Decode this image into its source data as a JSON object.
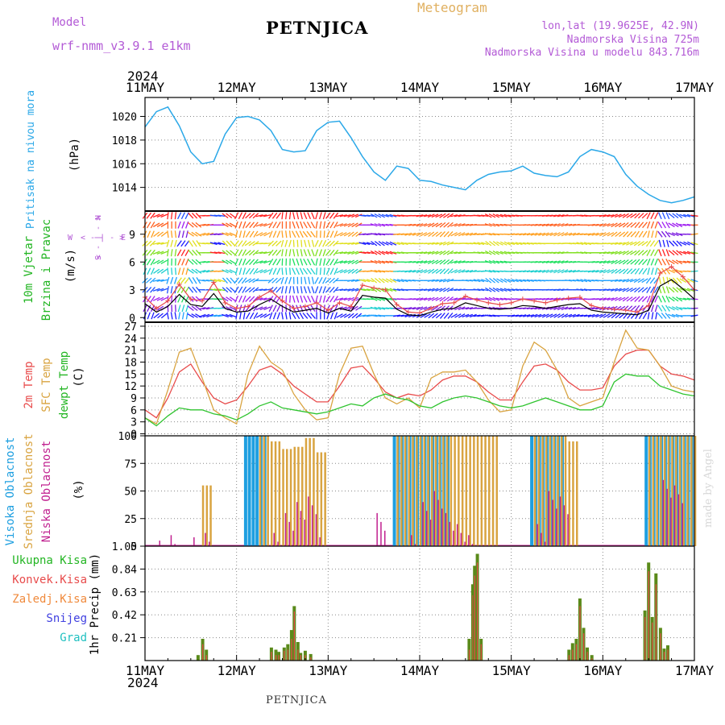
{
  "header": {
    "model_label": "Model",
    "model_name": "wrf-nmm_v3.9.1 e1km",
    "station": "PETNJICA",
    "product": "Meteogram",
    "lonlat": "lon,lat (19.9625E, 42.9N)",
    "elevation": "Nadmorska Visina 725m",
    "model_elevation": "Nadmorska Visina u modelu 843.716m",
    "year": "2024",
    "credit": "made by Angel",
    "footer_station": "PETNJICA"
  },
  "colors": {
    "pressure": "#2ba8e8",
    "wind_speed": "#000000",
    "gust": "#e84b4b",
    "temp2m": "#e84b4b",
    "sfc_temp": "#d9a441",
    "dewpt": "#2fc42f",
    "cloud_high": "#1e9fe0",
    "cloud_mid": "#d9a441",
    "cloud_low": "#c0208f",
    "precip_total": "#5a8a1a",
    "precip_conv": "#e84b4b",
    "label_model": "#b35ad6",
    "label_meteogram": "#e0b060"
  },
  "legend_dir": {
    "n": "N",
    "w": "W",
    "e": "E",
    "s": "S",
    "arrows": "< - | - >"
  },
  "chart_data": [
    {
      "type": "line",
      "panel": "pressure",
      "title": "",
      "ylabel": "Pritisak na nivou mora",
      "unit": "(hPa)",
      "x_ticks": [
        "11MAY",
        "12MAY",
        "13MAY",
        "14MAY",
        "15MAY",
        "16MAY",
        "17MAY"
      ],
      "ylim": [
        1012.0,
        1021.6
      ],
      "y_ticks": [
        1014,
        1016,
        1018,
        1020
      ],
      "x_days": [
        0.0,
        0.125,
        0.25,
        0.375,
        0.5,
        0.625,
        0.75,
        0.875,
        1.0,
        1.125,
        1.25,
        1.375,
        1.5,
        1.625,
        1.75,
        1.875,
        2.0,
        2.125,
        2.25,
        2.375,
        2.5,
        2.625,
        2.75,
        2.875,
        3.0,
        3.125,
        3.25,
        3.375,
        3.5,
        3.625,
        3.75,
        3.875,
        4.0,
        4.125,
        4.25,
        4.375,
        4.5,
        4.625,
        4.75,
        4.875,
        5.0,
        5.125,
        5.25,
        5.375,
        5.5,
        5.625,
        5.75,
        5.875,
        6.0
      ],
      "series": [
        {
          "values": [
            1019.1,
            1020.4,
            1020.8,
            1019.2,
            1017.0,
            1016.0,
            1016.2,
            1018.5,
            1019.9,
            1020.0,
            1019.7,
            1018.8,
            1017.2,
            1017.0,
            1017.1,
            1018.8,
            1019.5,
            1019.6,
            1018.2,
            1016.6,
            1015.3,
            1014.6,
            1015.8,
            1015.6,
            1014.6,
            1014.5,
            1014.2,
            1014.0,
            1013.8,
            1014.6,
            1015.1,
            1015.3,
            1015.4,
            1015.8,
            1015.2,
            1015.0,
            1014.9,
            1015.3,
            1016.6,
            1017.2,
            1017.0,
            1016.6,
            1015.1,
            1014.1,
            1013.4,
            1012.9,
            1012.7,
            1012.9,
            1013.2
          ]
        }
      ]
    },
    {
      "type": "line",
      "panel": "wind",
      "title": "",
      "ylabel": [
        "10m Vjetar",
        "Brzina i Pravac"
      ],
      "unit": "(m/s)",
      "ylim": [
        -0.5,
        11.5
      ],
      "y_ticks": [
        0,
        3,
        6,
        9
      ],
      "x_days": [
        0.0,
        0.125,
        0.25,
        0.375,
        0.5,
        0.625,
        0.75,
        0.875,
        1.0,
        1.125,
        1.25,
        1.375,
        1.5,
        1.625,
        1.75,
        1.875,
        2.0,
        2.125,
        2.25,
        2.375,
        2.5,
        2.625,
        2.75,
        2.875,
        3.0,
        3.125,
        3.25,
        3.375,
        3.5,
        3.625,
        3.75,
        3.875,
        4.0,
        4.125,
        4.25,
        4.375,
        4.5,
        4.625,
        4.75,
        4.875,
        5.0,
        5.125,
        5.25,
        5.375,
        5.5,
        5.625,
        5.75,
        5.875,
        6.0
      ],
      "series": [
        {
          "name": "speed",
          "values": [
            1.5,
            0.6,
            1.2,
            2.5,
            1.4,
            1.2,
            2.6,
            1.0,
            0.6,
            0.7,
            1.4,
            2.0,
            1.2,
            0.6,
            0.8,
            1.0,
            0.5,
            1.0,
            0.7,
            2.4,
            2.2,
            2.1,
            0.9,
            0.3,
            0.2,
            0.6,
            0.9,
            1.0,
            1.6,
            1.3,
            1.0,
            0.9,
            1.0,
            1.3,
            1.2,
            1.0,
            1.2,
            1.4,
            1.5,
            0.8,
            0.6,
            0.5,
            0.4,
            0.3,
            0.8,
            3.4,
            4.1,
            3.1,
            2.0
          ]
        },
        {
          "name": "gust",
          "values": [
            2.2,
            1.0,
            1.8,
            3.6,
            2.0,
            1.8,
            3.8,
            1.6,
            1.0,
            1.2,
            2.2,
            2.9,
            1.8,
            1.0,
            1.2,
            1.6,
            0.8,
            1.6,
            1.2,
            3.5,
            3.2,
            3.0,
            1.4,
            0.6,
            0.5,
            1.0,
            1.5,
            1.6,
            2.3,
            1.9,
            1.6,
            1.4,
            1.6,
            2.0,
            1.8,
            1.6,
            1.9,
            2.1,
            2.2,
            1.3,
            1.0,
            0.9,
            0.8,
            0.6,
            1.3,
            4.8,
            5.5,
            4.4,
            3.0
          ]
        }
      ],
      "arrow_levels_ms": [
        0.2,
        1,
        2,
        3,
        4,
        5,
        6,
        7,
        8,
        9,
        10,
        11
      ],
      "direction_deg": [
        200,
        230,
        170,
        190,
        120,
        70,
        80,
        110,
        190,
        210,
        240,
        200,
        170,
        150,
        140,
        180,
        200,
        240,
        230,
        260,
        280,
        270,
        260,
        250,
        240,
        230,
        220,
        240,
        250,
        260,
        280,
        270,
        260,
        255,
        250,
        245,
        240,
        250,
        260,
        250,
        240,
        230,
        220,
        210,
        190,
        140,
        110,
        90,
        80
      ]
    },
    {
      "type": "line",
      "panel": "temperature",
      "title": "",
      "ylabel": [
        "2m Temp",
        "SFC Temp",
        "dewpt Temp"
      ],
      "unit": "(C)",
      "ylim": [
        -0.5,
        28
      ],
      "y_ticks": [
        0,
        3,
        6,
        9,
        12,
        15,
        18,
        21,
        24,
        27
      ],
      "x_days": [
        0.0,
        0.125,
        0.25,
        0.375,
        0.5,
        0.625,
        0.75,
        0.875,
        1.0,
        1.125,
        1.25,
        1.375,
        1.5,
        1.625,
        1.75,
        1.875,
        2.0,
        2.125,
        2.25,
        2.375,
        2.5,
        2.625,
        2.75,
        2.875,
        3.0,
        3.125,
        3.25,
        3.375,
        3.5,
        3.625,
        3.75,
        3.875,
        4.0,
        4.125,
        4.25,
        4.375,
        4.5,
        4.625,
        4.75,
        4.875,
        5.0,
        5.125,
        5.25,
        5.375,
        5.5,
        5.625,
        5.75,
        5.875,
        6.0
      ],
      "series": [
        {
          "name": "2m Temp",
          "values": [
            6.0,
            4.0,
            9.0,
            15.5,
            17.5,
            13.0,
            9.0,
            7.5,
            8.5,
            12.0,
            16.0,
            17.0,
            15.0,
            12.0,
            10.0,
            8.0,
            8.0,
            12.0,
            16.5,
            17.0,
            14.0,
            10.5,
            9.0,
            10.0,
            9.5,
            11.0,
            13.5,
            14.5,
            14.5,
            13.0,
            10.5,
            8.5,
            8.5,
            13.0,
            17.0,
            17.5,
            16.0,
            13.0,
            11.0,
            11.0,
            11.5,
            17.0,
            20.0,
            21.0,
            21.0,
            17.0,
            15.0,
            14.5,
            13.5
          ]
        },
        {
          "name": "SFC Temp",
          "values": [
            4.0,
            2.5,
            11.0,
            20.5,
            21.5,
            14.0,
            6.0,
            4.0,
            2.5,
            15.0,
            22.0,
            18.0,
            16.0,
            10.0,
            6.0,
            3.5,
            4.0,
            15.0,
            21.5,
            22.0,
            15.0,
            9.0,
            7.5,
            9.0,
            6.5,
            14.0,
            15.5,
            15.5,
            16.0,
            13.0,
            8.5,
            5.5,
            6.0,
            17.0,
            23.0,
            21.0,
            16.0,
            9.0,
            7.0,
            8.0,
            9.0,
            18.0,
            26.0,
            21.5,
            21.0,
            17.0,
            12.0,
            11.0,
            10.5
          ]
        },
        {
          "name": "dewpt Temp",
          "values": [
            4.0,
            2.0,
            4.5,
            6.5,
            6.0,
            6.0,
            5.0,
            4.5,
            3.5,
            5.0,
            7.0,
            8.0,
            6.5,
            6.0,
            5.5,
            5.0,
            5.5,
            6.5,
            7.5,
            7.0,
            9.0,
            10.0,
            9.0,
            8.5,
            7.0,
            6.5,
            8.0,
            9.0,
            9.5,
            9.0,
            8.0,
            7.0,
            6.5,
            7.0,
            8.0,
            9.0,
            8.0,
            7.0,
            6.0,
            6.0,
            7.0,
            13.0,
            15.0,
            14.5,
            14.5,
            12.0,
            11.0,
            10.0,
            9.5
          ]
        }
      ]
    },
    {
      "type": "bar",
      "panel": "cloud",
      "title": "",
      "ylabel": [
        "Visoka Oblacnost",
        "Srednja Oblacnost",
        "Niska Oblacnost"
      ],
      "unit": "(%)",
      "ylim": [
        0,
        100
      ],
      "y_ticks": [
        0,
        25,
        50,
        75,
        100
      ],
      "x_days": [
        0.0,
        0.125,
        0.25,
        0.375,
        0.5,
        0.625,
        0.75,
        0.875,
        1.0,
        1.125,
        1.25,
        1.375,
        1.5,
        1.625,
        1.75,
        1.875,
        2.0,
        2.125,
        2.25,
        2.375,
        2.5,
        2.625,
        2.75,
        2.875,
        3.0,
        3.125,
        3.25,
        3.375,
        3.5,
        3.625,
        3.75,
        3.875,
        4.0,
        4.125,
        4.25,
        4.375,
        4.5,
        4.625,
        4.75,
        4.875,
        5.0,
        5.125,
        5.25,
        5.375,
        5.5,
        5.625,
        5.75,
        5.875,
        6.0
      ],
      "series": [
        {
          "name": "Visoka Oblacnost",
          "values": [
            0,
            0,
            0,
            0,
            0,
            0,
            0,
            0,
            0,
            100,
            100,
            0,
            0,
            0,
            0,
            0,
            0,
            0,
            0,
            0,
            0,
            0,
            100,
            100,
            100,
            100,
            100,
            0,
            0,
            0,
            0,
            0,
            0,
            0,
            100,
            100,
            100,
            0,
            0,
            0,
            0,
            0,
            0,
            0,
            100,
            100,
            100,
            100,
            100
          ]
        },
        {
          "name": "Srednja Oblacnost",
          "values": [
            0,
            0,
            0,
            0,
            0,
            55,
            0,
            0,
            0,
            0,
            100,
            95,
            88,
            90,
            98,
            85,
            0,
            0,
            0,
            0,
            0,
            0,
            100,
            100,
            100,
            100,
            100,
            100,
            100,
            100,
            100,
            0,
            0,
            0,
            100,
            100,
            100,
            95,
            0,
            0,
            0,
            0,
            0,
            0,
            100,
            100,
            100,
            100,
            100
          ]
        },
        {
          "name": "Niska Oblacnost",
          "values": [
            0,
            5,
            10,
            0,
            8,
            12,
            0,
            0,
            0,
            0,
            0,
            12,
            30,
            40,
            45,
            8,
            0,
            0,
            0,
            0,
            30,
            0,
            0,
            10,
            40,
            50,
            30,
            20,
            10,
            0,
            0,
            0,
            0,
            0,
            20,
            50,
            45,
            0,
            0,
            0,
            0,
            0,
            0,
            0,
            0,
            60,
            55,
            0,
            0
          ]
        }
      ]
    },
    {
      "type": "bar",
      "panel": "precip",
      "title": "",
      "ylabel": "1hr Precip (mm)",
      "legend": [
        "Ukupna Kisa",
        "Konvek.Kisa",
        "Zaledj.Kisa",
        "Snijeg",
        "Grad"
      ],
      "ylim": [
        0,
        1.05
      ],
      "y_ticks": [
        0.21,
        0.42,
        0.63,
        0.84,
        1.05
      ],
      "x_days": [
        0.58,
        0.63,
        0.67,
        1.38,
        1.43,
        1.46,
        1.52,
        1.56,
        1.6,
        1.63,
        1.67,
        1.7,
        1.75,
        1.81,
        3.54,
        3.58,
        3.6,
        3.63,
        3.67,
        4.63,
        4.67,
        4.71,
        4.75,
        4.79,
        4.83,
        4.88,
        5.46,
        5.5,
        5.54,
        5.58,
        5.63,
        5.67,
        5.71
      ],
      "series": [
        {
          "name": "Ukupna Kisa",
          "values": [
            0.05,
            0.2,
            0.1,
            0.12,
            0.1,
            0.08,
            0.12,
            0.15,
            0.28,
            0.5,
            0.17,
            0.07,
            0.09,
            0.06,
            0.2,
            0.7,
            0.87,
            0.98,
            0.2,
            0.1,
            0.16,
            0.2,
            0.57,
            0.3,
            0.12,
            0.05,
            0.46,
            0.9,
            0.4,
            0.8,
            0.3,
            0.11,
            0.14
          ]
        },
        {
          "name": "Konvek.Kisa",
          "values": [
            0.0,
            0.15,
            0.05,
            0.08,
            0.05,
            0.05,
            0.09,
            0.1,
            0.2,
            0.45,
            0.1,
            0.05,
            0.05,
            0.03,
            0.1,
            0.6,
            0.78,
            0.9,
            0.15,
            0.05,
            0.1,
            0.15,
            0.5,
            0.25,
            0.08,
            0.02,
            0.4,
            0.82,
            0.35,
            0.7,
            0.25,
            0.08,
            0.1
          ]
        }
      ]
    }
  ]
}
